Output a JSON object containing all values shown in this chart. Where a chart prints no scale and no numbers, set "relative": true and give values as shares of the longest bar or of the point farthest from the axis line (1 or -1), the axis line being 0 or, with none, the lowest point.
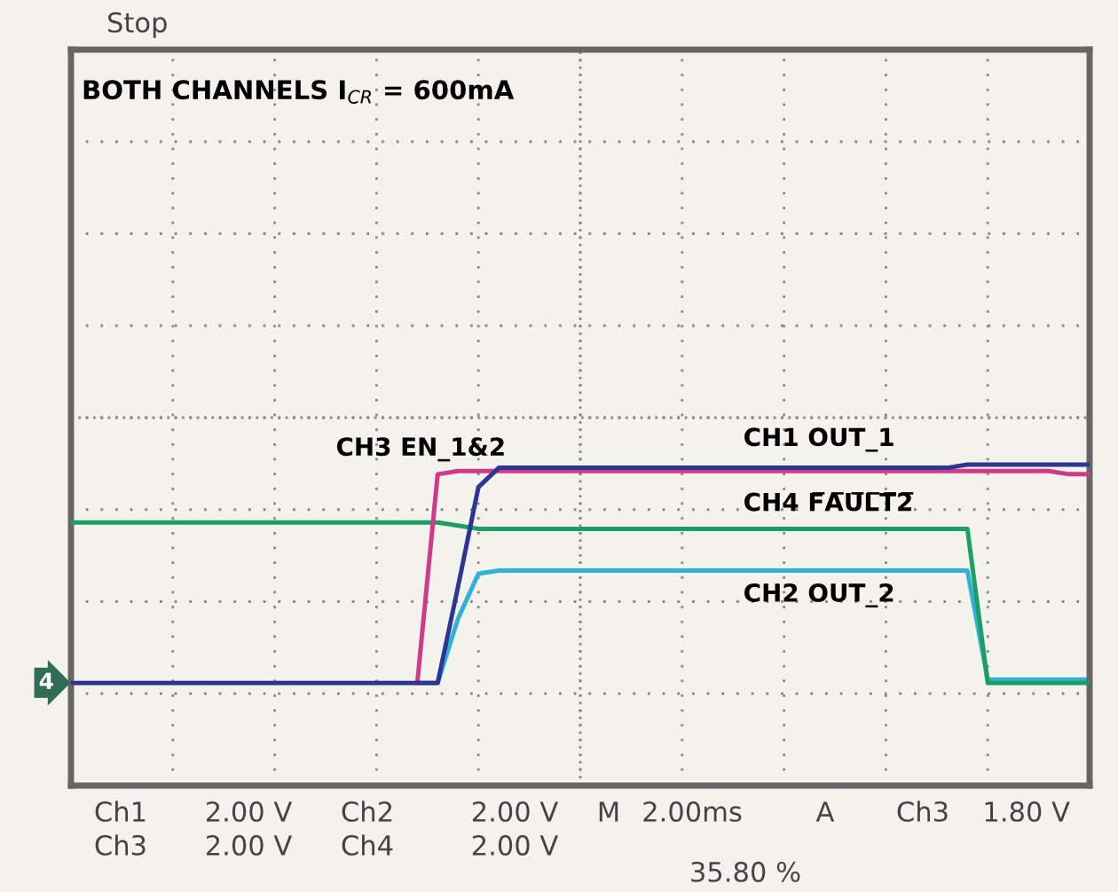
{
  "chart_data": {
    "type": "line",
    "relative": true,
    "grid": true,
    "legend": false,
    "line_style": "solid",
    "marker": "none",
    "categories": [
      null,
      null,
      null,
      null,
      null,
      null,
      null,
      null,
      null,
      null,
      null,
      null,
      null,
      null,
      null,
      null,
      null,
      null,
      null,
      null,
      null,
      null,
      null,
      null,
      null,
      null,
      null,
      null,
      null,
      null,
      null,
      null,
      null,
      null,
      null,
      null,
      null,
      null,
      null,
      null,
      null,
      null,
      null,
      null,
      null,
      null,
      null,
      null,
      null,
      null,
      null
    ],
    "series": [
      {
        "name": "CH1 OUT_1",
        "color": "#2e3592",
        "values": [
          0.32,
          0.32,
          0.32,
          0.32,
          0.32,
          0.32,
          0.32,
          0.32,
          0.32,
          0.32,
          0.32,
          0.32,
          0.32,
          0.32,
          0.32,
          0.32,
          0.32,
          0.32,
          0.32,
          0.62,
          0.93,
          0.99,
          0.99,
          0.99,
          0.99,
          0.99,
          0.99,
          0.99,
          0.99,
          0.99,
          0.99,
          0.99,
          0.99,
          0.99,
          0.99,
          0.99,
          0.99,
          0.99,
          0.99,
          0.99,
          0.99,
          0.99,
          0.99,
          0.99,
          1,
          1,
          1,
          1,
          1,
          1,
          1
        ]
      },
      {
        "name": "CH3 EN_1&2",
        "color": "#d03a86",
        "values": [
          null,
          null,
          null,
          null,
          null,
          null,
          null,
          null,
          null,
          null,
          null,
          null,
          null,
          null,
          null,
          null,
          null,
          0.32,
          0.97,
          0.98,
          0.98,
          0.98,
          0.98,
          0.98,
          0.98,
          0.98,
          0.98,
          0.98,
          0.98,
          0.98,
          0.98,
          0.98,
          0.98,
          0.98,
          0.98,
          0.98,
          0.98,
          0.98,
          0.98,
          0.98,
          0.98,
          0.98,
          0.98,
          0.98,
          0.98,
          0.98,
          0.98,
          0.98,
          0.98,
          0.97,
          0.97
        ]
      },
      {
        "name": "CH4 F̅A̅U̅L̅T̅2̅",
        "color": "#1e9e62",
        "values": [
          0.82,
          0.82,
          0.82,
          0.82,
          0.82,
          0.82,
          0.82,
          0.82,
          0.82,
          0.82,
          0.82,
          0.82,
          0.82,
          0.82,
          0.82,
          0.82,
          0.82,
          0.82,
          0.82,
          0.81,
          0.8,
          0.8,
          0.8,
          0.8,
          0.8,
          0.8,
          0.8,
          0.8,
          0.8,
          0.8,
          0.8,
          0.8,
          0.8,
          0.8,
          0.8,
          0.8,
          0.8,
          0.8,
          0.8,
          0.8,
          0.8,
          0.8,
          0.8,
          0.8,
          0.8,
          0.32,
          0.32,
          0.32,
          0.32,
          0.32,
          0.32
        ]
      },
      {
        "name": "CH2 OUT_2",
        "color": "#2fb2d6",
        "values": [
          null,
          null,
          null,
          null,
          null,
          null,
          null,
          null,
          null,
          null,
          null,
          null,
          null,
          null,
          null,
          null,
          null,
          0.32,
          0.32,
          0.52,
          0.66,
          0.67,
          0.67,
          0.67,
          0.67,
          0.67,
          0.67,
          0.67,
          0.67,
          0.67,
          0.67,
          0.67,
          0.67,
          0.67,
          0.67,
          0.67,
          0.67,
          0.67,
          0.67,
          0.67,
          0.67,
          0.67,
          0.67,
          0.67,
          0.67,
          0.33,
          0.33,
          0.33,
          0.33,
          0.33,
          0.33
        ]
      }
    ],
    "annotations": [
      "4",
      "BOTH CHANNELS I$_{CR}$ = 600mA",
      "Stop",
      "Ch1",
      "2.00 V",
      "Ch2",
      "2.00 V",
      "M",
      "2.00ms",
      "A",
      "Ch3",
      "1.80 V",
      "Ch3",
      "2.00 V",
      "Ch4",
      "2.00 V",
      "35.80 %"
    ]
  }
}
